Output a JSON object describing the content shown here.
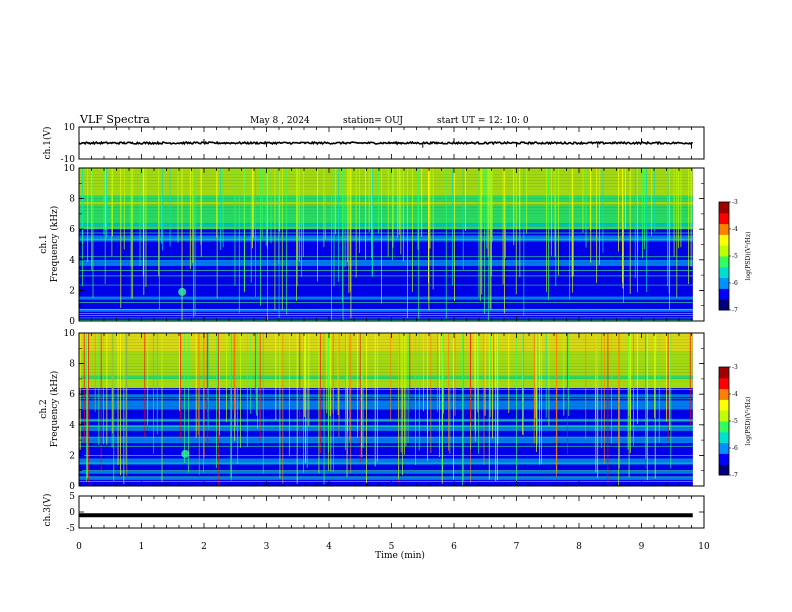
{
  "header": {
    "title": "VLF Spectra",
    "date": "May 8 , 2024",
    "station": "station= OUJ",
    "start": "start UT = 12: 10: 0"
  },
  "colors": {
    "axis": "#000000",
    "background": "#ffffff",
    "spectrogram_scale": [
      "#00007a",
      "#0000ff",
      "#0090ff",
      "#00e0d0",
      "#30ff60",
      "#c0ff00",
      "#ffff00",
      "#ff8000",
      "#ff0000",
      "#a00000",
      "#ffffff"
    ]
  },
  "chart_data": [
    {
      "type": "line",
      "name": "ch1-waveform",
      "ylabel": "ch.1(V)",
      "xlim": [
        0,
        10
      ],
      "ylim": [
        -10,
        10
      ],
      "yticks": [
        "10",
        "-10"
      ],
      "baseline": 0,
      "spikes": [
        {
          "t": 2.0,
          "v": 2.5
        },
        {
          "t": 3.0,
          "v": -2.5
        },
        {
          "t": 5.5,
          "v": -3.0
        },
        {
          "t": 6.0,
          "v": 3.0
        },
        {
          "t": 7.0,
          "v": -2.5
        },
        {
          "t": 8.3,
          "v": -3.0
        },
        {
          "t": 9.0,
          "v": 3.0
        },
        {
          "t": 9.8,
          "v": -3.5
        }
      ]
    },
    {
      "type": "heatmap",
      "name": "ch1-spectrogram",
      "ylabel": "ch.1",
      "ylabel2": "Frequency (kHz)",
      "xlim": [
        0,
        10
      ],
      "ylim": [
        0,
        10
      ],
      "yticks": [
        "0",
        "2",
        "4",
        "6",
        "8",
        "10"
      ],
      "data_end_min": 9.82,
      "colorbar": {
        "label": "log(PSD)(V²/Hz)",
        "range": [
          -7,
          -3
        ],
        "ticks": [
          "-3",
          "-4",
          "-5",
          "-6",
          "-7"
        ]
      },
      "bright_lines_khz": [
        0.05,
        0.2,
        0.35,
        0.5,
        0.75,
        1.2,
        2.35,
        2.95,
        3.3,
        4.2,
        5.35,
        5.75
      ],
      "spot": {
        "t": 1.65,
        "f": 1.9
      }
    },
    {
      "type": "heatmap",
      "name": "ch2-spectrogram",
      "ylabel": "ch.2",
      "ylabel2": "Frequency (kHz)",
      "xlim": [
        0,
        10
      ],
      "ylim": [
        0,
        10
      ],
      "yticks": [
        "0",
        "2",
        "4",
        "6",
        "8",
        "10"
      ],
      "data_end_min": 9.82,
      "colorbar": {
        "label": "log(PSD)(V²/Hz)",
        "range": [
          -7,
          -3
        ],
        "ticks": [
          "-3",
          "-4",
          "-5",
          "-6",
          "-7"
        ]
      },
      "bright_lines_khz": [
        0.3,
        0.6,
        1.0,
        1.5,
        2.0,
        2.6,
        3.2,
        3.9,
        4.3,
        5.7,
        6.3
      ],
      "spot": {
        "t": 1.7,
        "f": 2.1
      }
    },
    {
      "type": "line",
      "name": "ch3-waveform",
      "ylabel": "ch.3(V)",
      "xlabel": "Time (min)",
      "xlim": [
        0,
        10
      ],
      "ylim": [
        -5,
        5
      ],
      "yticks": [
        "5",
        "0",
        "-5"
      ],
      "level": -1.0,
      "xticks": [
        "0",
        "1",
        "2",
        "3",
        "4",
        "5",
        "6",
        "7",
        "8",
        "9",
        "10"
      ]
    }
  ]
}
